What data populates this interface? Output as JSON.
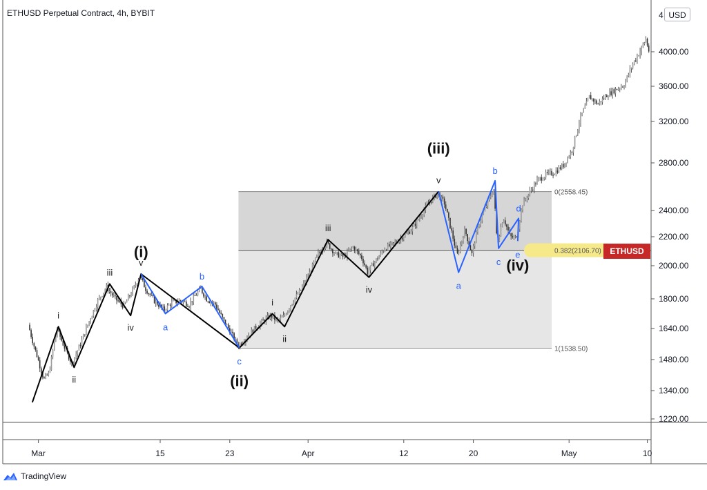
{
  "header": {
    "title": "ETHUSD Perpetual Contract, 4h, BYBIT",
    "currency_button": "USD"
  },
  "footer": {
    "brand": "TradingView"
  },
  "symbol_badge": {
    "label": "ETHUSD",
    "color": "#c62828"
  },
  "colors": {
    "primary_wave": "#000000",
    "correction_wave": "#2962ff",
    "fib_fill": "#d9d9d9",
    "fib_highlight": "#f5e98a"
  },
  "chart_data": {
    "type": "candlestick",
    "title": "ETHUSD Perpetual Contract, 4h, BYBIT",
    "ylim": [
      1160,
      4320
    ],
    "y_ticks": [
      {
        "value": 4000,
        "label": "4000.00"
      },
      {
        "value": 3600,
        "label": "3600.00"
      },
      {
        "value": 3200,
        "label": "3200.00"
      },
      {
        "value": 2800,
        "label": "2800.00"
      },
      {
        "value": 2400,
        "label": "2400.00"
      },
      {
        "value": 2200,
        "label": "2200.00"
      },
      {
        "value": 2000,
        "label": "2000.00"
      },
      {
        "value": 1800,
        "label": "1800.00"
      },
      {
        "value": 1640,
        "label": "1640.00"
      },
      {
        "value": 1480,
        "label": "1480.00"
      },
      {
        "value": 1340,
        "label": "1340.00"
      },
      {
        "value": 1220,
        "label": "1220.00"
      }
    ],
    "top_partial_label": "4",
    "x_ticks": [
      {
        "day": 1,
        "label": "Mar"
      },
      {
        "day": 15,
        "label": "15"
      },
      {
        "day": 23,
        "label": "23"
      },
      {
        "day": 32,
        "label": "Apr"
      },
      {
        "day": 43,
        "label": "12"
      },
      {
        "day": 51,
        "label": "20"
      },
      {
        "day": 62,
        "label": "May"
      },
      {
        "day": 71,
        "label": "10"
      }
    ],
    "fib_levels": [
      {
        "ratio": 0,
        "price": 2558.45,
        "label": "0(2558.45)"
      },
      {
        "ratio": 0.382,
        "price": 2106.7,
        "label": "0.382(2106.70)"
      },
      {
        "ratio": 1,
        "price": 1538.5,
        "label": "1(1538.50)"
      }
    ],
    "fib_box": {
      "day_start": 24,
      "day_end": 60
    },
    "primary_wave": [
      {
        "day": 0.3,
        "price": 1290
      },
      {
        "day": 3.3,
        "price": 1650,
        "label": "i"
      },
      {
        "day": 5.1,
        "price": 1445,
        "label": "ii"
      },
      {
        "day": 9.2,
        "price": 1890,
        "label": "iii"
      },
      {
        "day": 11.6,
        "price": 1710,
        "label": "iv"
      },
      {
        "day": 12.8,
        "price": 1950,
        "label": "v"
      },
      {
        "day": 24.1,
        "price": 1540
      },
      {
        "day": 27.9,
        "price": 1720,
        "label": "i"
      },
      {
        "day": 29.3,
        "price": 1650,
        "label": "ii"
      },
      {
        "day": 34.3,
        "price": 2180,
        "label": "iii"
      },
      {
        "day": 39.0,
        "price": 1930,
        "label": "iv"
      },
      {
        "day": 47.0,
        "price": 2560,
        "label": "v"
      }
    ],
    "correction_waves": [
      {
        "name": "first",
        "points": [
          {
            "day": 12.8,
            "price": 1950
          },
          {
            "day": 15.6,
            "price": 1720,
            "label": "a"
          },
          {
            "day": 19.8,
            "price": 1875,
            "label": "b"
          },
          {
            "day": 24.1,
            "price": 1540,
            "label": "c"
          }
        ]
      },
      {
        "name": "second",
        "points": [
          {
            "day": 47.0,
            "price": 2560
          },
          {
            "day": 49.3,
            "price": 1960,
            "label": "a"
          },
          {
            "day": 53.5,
            "price": 2650,
            "label": "b"
          },
          {
            "day": 53.9,
            "price": 2120,
            "label": "c"
          },
          {
            "day": 56.2,
            "price": 2340,
            "label": "d"
          },
          {
            "day": 56.1,
            "price": 2170,
            "label": "e"
          }
        ]
      }
    ],
    "degree_labels": [
      {
        "text": "(i)",
        "day": 12.8,
        "price": 2060
      },
      {
        "text": "(ii)",
        "day": 24.1,
        "price": 1360
      },
      {
        "text": "(iii)",
        "day": 47.0,
        "price": 2890
      },
      {
        "text": "(iv)",
        "day": 56.1,
        "price": 1970
      }
    ],
    "price_path": [
      [
        0,
        1660
      ],
      [
        0.6,
        1560
      ],
      [
        1.2,
        1470
      ],
      [
        1.8,
        1390
      ],
      [
        2.4,
        1420
      ],
      [
        3.3,
        1640
      ],
      [
        4.0,
        1560
      ],
      [
        5.0,
        1460
      ],
      [
        6.0,
        1560
      ],
      [
        7.0,
        1680
      ],
      [
        8.0,
        1790
      ],
      [
        9.0,
        1870
      ],
      [
        10.0,
        1800
      ],
      [
        11.0,
        1760
      ],
      [
        12.0,
        1850
      ],
      [
        12.8,
        1940
      ],
      [
        13.5,
        1860
      ],
      [
        14.5,
        1790
      ],
      [
        15.6,
        1740
      ],
      [
        16.5,
        1780
      ],
      [
        17.5,
        1790
      ],
      [
        18.5,
        1770
      ],
      [
        19.8,
        1860
      ],
      [
        20.5,
        1800
      ],
      [
        21.5,
        1770
      ],
      [
        22.5,
        1680
      ],
      [
        23.3,
        1620
      ],
      [
        24.1,
        1550
      ],
      [
        25.0,
        1590
      ],
      [
        26.0,
        1640
      ],
      [
        27.0,
        1680
      ],
      [
        27.9,
        1710
      ],
      [
        28.6,
        1680
      ],
      [
        29.3,
        1700
      ],
      [
        30.3,
        1780
      ],
      [
        31.3,
        1850
      ],
      [
        32.3,
        1950
      ],
      [
        33.3,
        2080
      ],
      [
        34.3,
        2160
      ],
      [
        35.3,
        2080
      ],
      [
        36.3,
        2060
      ],
      [
        37.3,
        2130
      ],
      [
        38.3,
        2060
      ],
      [
        39.0,
        1960
      ],
      [
        40.0,
        2040
      ],
      [
        41.0,
        2120
      ],
      [
        42.0,
        2150
      ],
      [
        43.0,
        2200
      ],
      [
        44.0,
        2250
      ],
      [
        45.0,
        2350
      ],
      [
        46.0,
        2460
      ],
      [
        47.0,
        2540
      ],
      [
        47.8,
        2470
      ],
      [
        48.5,
        2280
      ],
      [
        49.3,
        2070
      ],
      [
        50.2,
        2250
      ],
      [
        51.0,
        2080
      ],
      [
        51.8,
        2300
      ],
      [
        52.7,
        2450
      ],
      [
        53.5,
        2580
      ],
      [
        53.9,
        2150
      ],
      [
        54.6,
        2350
      ],
      [
        55.4,
        2200
      ],
      [
        56.1,
        2190
      ],
      [
        56.8,
        2450
      ],
      [
        57.6,
        2550
      ],
      [
        58.5,
        2650
      ],
      [
        59.5,
        2700
      ],
      [
        60.5,
        2720
      ],
      [
        61.5,
        2780
      ],
      [
        62.5,
        2920
      ],
      [
        63.5,
        3250
      ],
      [
        64.5,
        3480
      ],
      [
        65.5,
        3400
      ],
      [
        66.5,
        3500
      ],
      [
        67.5,
        3560
      ],
      [
        68.5,
        3620
      ],
      [
        69.5,
        3860
      ],
      [
        70.5,
        4040
      ],
      [
        71.0,
        4150
      ],
      [
        71.6,
        3900
      ],
      [
        72.3,
        4150
      ],
      [
        73.0,
        4270
      ]
    ]
  }
}
